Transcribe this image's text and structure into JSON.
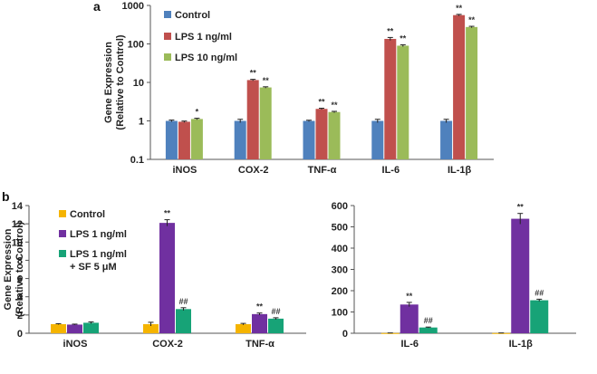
{
  "chart_data": [
    {
      "panel": "a",
      "type": "bar",
      "scale": "log",
      "ylabel_lines": [
        "Gene Expression",
        "(Relative to Control)"
      ],
      "ylim": [
        0.1,
        1000
      ],
      "yticks": [
        0.1,
        1,
        10,
        100,
        1000
      ],
      "ytick_labels": [
        "0.1",
        "1",
        "10",
        "100",
        "1000"
      ],
      "categories": [
        "iNOS",
        "COX-2",
        "TNF-α",
        "IL-6",
        "IL-1β"
      ],
      "series": [
        {
          "name": "Control",
          "color": "#4f81bd",
          "values": [
            1,
            1,
            1,
            1,
            1
          ],
          "errors": [
            0.05,
            0.1,
            0.04,
            0.1,
            0.1
          ],
          "annotations": [
            "",
            "",
            "",
            "",
            ""
          ]
        },
        {
          "name": "LPS 1 ng/ml",
          "color": "#c0504d",
          "values": [
            0.95,
            11.5,
            2.05,
            135,
            560
          ],
          "errors": [
            0.04,
            0.5,
            0.08,
            12,
            25
          ],
          "annotations": [
            "",
            "**",
            "**",
            "**",
            "**"
          ]
        },
        {
          "name": "LPS 10 ng/ml",
          "color": "#9bbb59",
          "values": [
            1.12,
            7.4,
            1.7,
            90,
            275
          ],
          "errors": [
            0.05,
            0.3,
            0.07,
            5,
            12
          ],
          "annotations": [
            "*",
            "**",
            "**",
            "**",
            "**"
          ]
        }
      ]
    },
    {
      "panel": "b",
      "type": "bar",
      "scale": "linear",
      "ylabel_lines": [
        "Gene Expression",
        "(Relative to Control)"
      ],
      "ylim": [
        0,
        14
      ],
      "yticks": [
        0,
        2,
        4,
        6,
        8,
        10,
        12,
        14
      ],
      "ytick_labels": [
        "0",
        "2",
        "4",
        "6",
        "8",
        "10",
        "12",
        "14"
      ],
      "categories": [
        "iNOS",
        "COX-2",
        "TNF-α"
      ],
      "series": [
        {
          "name": "Control",
          "color": "#f5b400",
          "values": [
            1,
            1,
            1
          ],
          "errors": [
            0.05,
            0.2,
            0.08
          ],
          "annotations": [
            "",
            "",
            ""
          ]
        },
        {
          "name": "LPS 1 ng/ml",
          "color": "#7030a0",
          "values": [
            0.95,
            12.1,
            2.1
          ],
          "errors": [
            0.05,
            0.35,
            0.12
          ],
          "annotations": [
            "",
            "**",
            "**"
          ]
        },
        {
          "name": "LPS 1 ng/ml + SF 5 μM",
          "color": "#17a377",
          "values": [
            1.15,
            2.65,
            1.6
          ],
          "errors": [
            0.1,
            0.15,
            0.1
          ],
          "annotations": [
            "",
            "##",
            "##"
          ]
        }
      ]
    },
    {
      "panel": "b",
      "type": "bar",
      "scale": "linear",
      "ylim": [
        0,
        600
      ],
      "yticks": [
        0,
        100,
        200,
        300,
        400,
        500,
        600
      ],
      "ytick_labels": [
        "0",
        "100",
        "200",
        "300",
        "400",
        "500",
        "600"
      ],
      "categories": [
        "IL-6",
        "IL-1β"
      ],
      "series": [
        {
          "name": "Control",
          "color": "#f5b400",
          "values": [
            1,
            1
          ],
          "errors": [
            0.5,
            0.5
          ],
          "annotations": [
            "",
            ""
          ]
        },
        {
          "name": "LPS 1 ng/ml",
          "color": "#7030a0",
          "values": [
            135,
            538
          ],
          "errors": [
            10,
            25
          ],
          "annotations": [
            "**",
            "**"
          ]
        },
        {
          "name": "LPS 1 ng/ml + SF 5 μM",
          "color": "#17a377",
          "values": [
            27,
            155
          ],
          "errors": [
            2,
            5
          ],
          "annotations": [
            "##",
            "##"
          ]
        }
      ]
    }
  ],
  "legend_a": [
    "Control",
    "LPS 1 ng/ml",
    "LPS 10 ng/ml"
  ],
  "legend_b": [
    "Control",
    "LPS 1 ng/ml",
    "LPS 1 ng/ml",
    "+ SF 5 μM"
  ]
}
